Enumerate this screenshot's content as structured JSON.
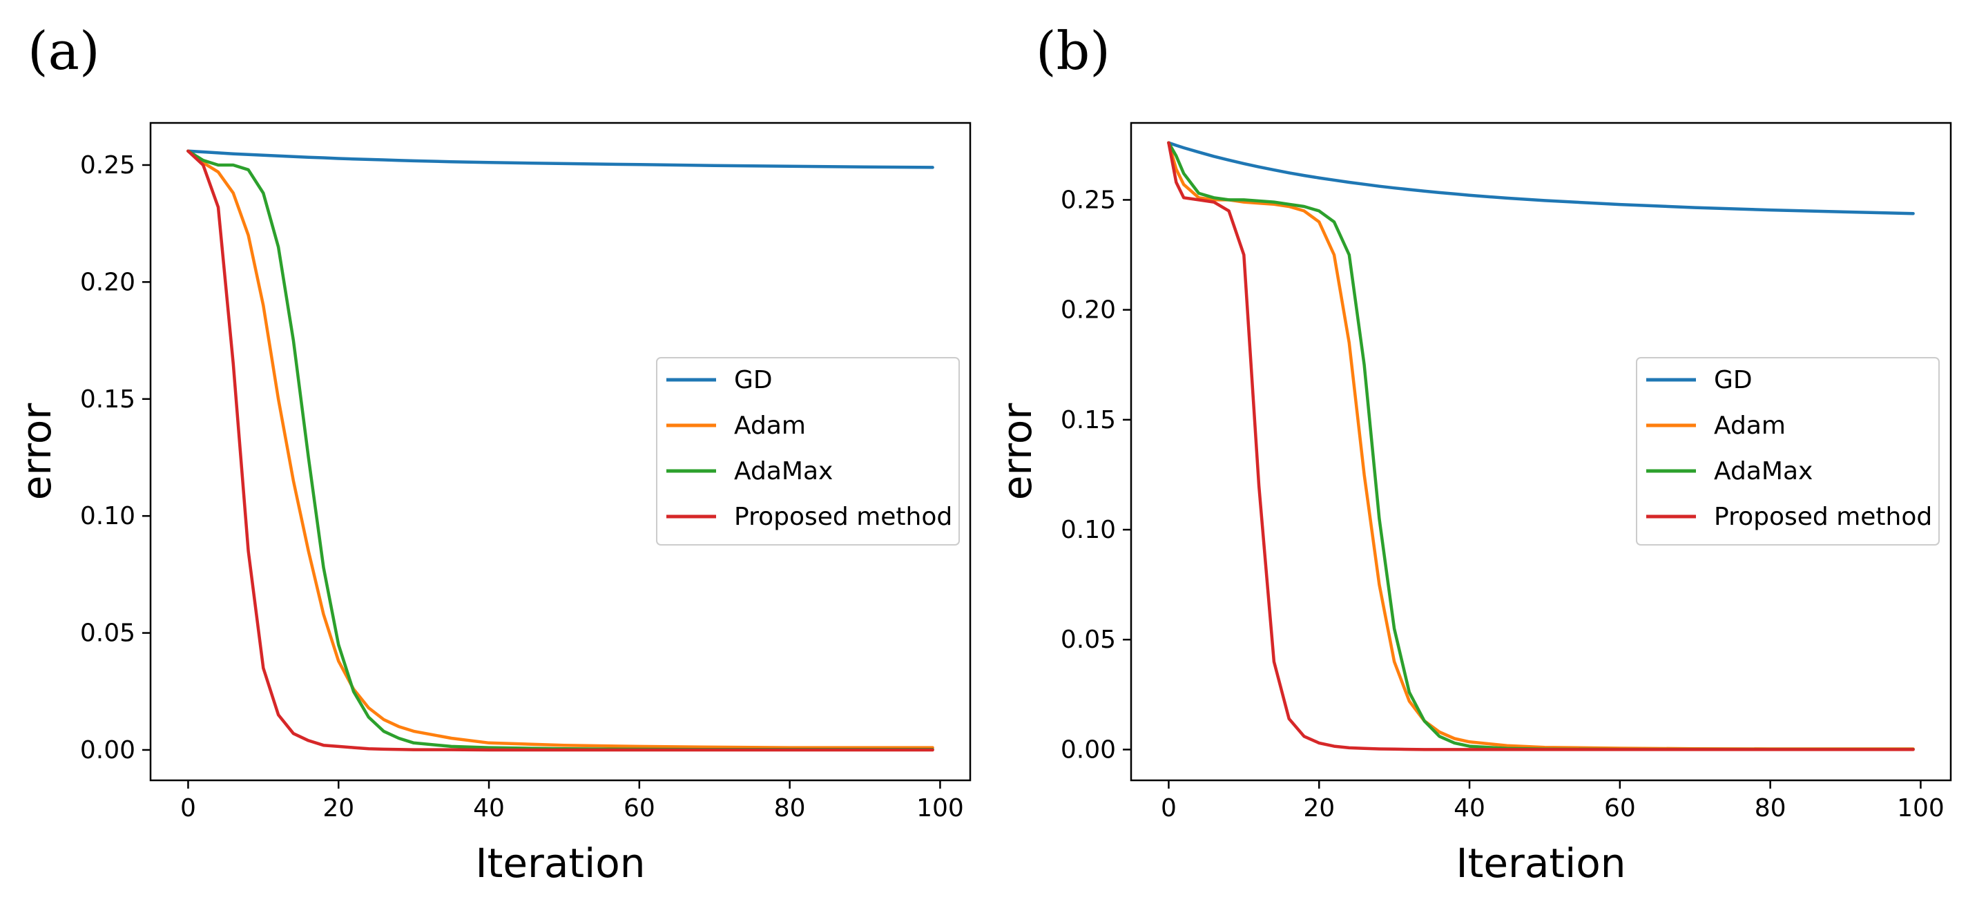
{
  "chart_data": [
    {
      "type": "line",
      "panel_label": "(a)",
      "xlabel": "Iteration",
      "ylabel": "error",
      "xlim": [
        -5,
        104
      ],
      "ylim": [
        -0.013,
        0.268
      ],
      "xticks": [
        0,
        20,
        40,
        60,
        80,
        100
      ],
      "xtick_labels": [
        "0",
        "20",
        "40",
        "60",
        "80",
        "100"
      ],
      "yticks": [
        0.0,
        0.05,
        0.1,
        0.15,
        0.2,
        0.25
      ],
      "ytick_labels": [
        "0.00",
        "0.05",
        "0.10",
        "0.15",
        "0.20",
        "0.25"
      ],
      "grid": false,
      "legend_position": "center-right",
      "x": [
        0,
        2,
        4,
        6,
        8,
        10,
        12,
        14,
        16,
        18,
        20,
        22,
        24,
        26,
        28,
        30,
        35,
        40,
        50,
        60,
        70,
        80,
        90,
        99
      ],
      "series": [
        {
          "name": "GD",
          "color": "#1f77b4",
          "values": [
            0.256,
            0.2556,
            0.2552,
            0.2548,
            0.2545,
            0.2542,
            0.2539,
            0.2536,
            0.2533,
            0.2531,
            0.2528,
            0.2526,
            0.2524,
            0.2522,
            0.252,
            0.2518,
            0.2514,
            0.2511,
            0.2506,
            0.2502,
            0.2498,
            0.2495,
            0.2492,
            0.249
          ]
        },
        {
          "name": "Adam",
          "color": "#ff7f0e",
          "values": [
            0.256,
            0.251,
            0.247,
            0.238,
            0.22,
            0.19,
            0.15,
            0.115,
            0.085,
            0.058,
            0.038,
            0.026,
            0.018,
            0.013,
            0.01,
            0.008,
            0.005,
            0.003,
            0.002,
            0.0015,
            0.0012,
            0.001,
            0.001,
            0.001
          ]
        },
        {
          "name": "AdaMax",
          "color": "#2ca02c",
          "values": [
            0.256,
            0.252,
            0.25,
            0.25,
            0.248,
            0.238,
            0.215,
            0.175,
            0.125,
            0.078,
            0.045,
            0.025,
            0.014,
            0.008,
            0.005,
            0.003,
            0.0015,
            0.001,
            0.0005,
            0.0003,
            0.0002,
            0.0002,
            0.0002,
            0.0002
          ]
        },
        {
          "name": "Proposed method",
          "color": "#d62728",
          "values": [
            0.256,
            0.25,
            0.232,
            0.165,
            0.085,
            0.035,
            0.015,
            0.007,
            0.004,
            0.002,
            0.0015,
            0.001,
            0.0005,
            0.0003,
            0.0002,
            0.0001,
            0.0001,
            0,
            0,
            0,
            0,
            0,
            0,
            0
          ]
        }
      ]
    },
    {
      "type": "line",
      "panel_label": "(b)",
      "xlabel": "Iteration",
      "ylabel": "error",
      "xlim": [
        -5,
        104
      ],
      "ylim": [
        -0.014,
        0.285
      ],
      "xticks": [
        0,
        20,
        40,
        60,
        80,
        100
      ],
      "xtick_labels": [
        "0",
        "20",
        "40",
        "60",
        "80",
        "100"
      ],
      "yticks": [
        0.0,
        0.05,
        0.1,
        0.15,
        0.2,
        0.25
      ],
      "ytick_labels": [
        "0.00",
        "0.05",
        "0.10",
        "0.15",
        "0.20",
        "0.25"
      ],
      "grid": false,
      "legend_position": "center-right",
      "x": [
        0,
        1,
        2,
        4,
        6,
        8,
        10,
        12,
        14,
        16,
        18,
        20,
        22,
        24,
        26,
        28,
        30,
        32,
        34,
        36,
        38,
        40,
        45,
        50,
        60,
        70,
        80,
        90,
        99
      ],
      "series": [
        {
          "name": "GD",
          "color": "#1f77b4",
          "values": [
            0.276,
            0.2748,
            0.2737,
            0.2717,
            0.2698,
            0.2681,
            0.2665,
            0.265,
            0.2636,
            0.2623,
            0.2611,
            0.26,
            0.259,
            0.258,
            0.2571,
            0.2562,
            0.2554,
            0.2547,
            0.254,
            0.2533,
            0.2527,
            0.2521,
            0.2508,
            0.2497,
            0.2479,
            0.2465,
            0.2454,
            0.2445,
            0.2438
          ]
        },
        {
          "name": "Adam",
          "color": "#ff7f0e",
          "values": [
            0.276,
            0.264,
            0.257,
            0.251,
            0.25,
            0.25,
            0.249,
            0.2485,
            0.248,
            0.247,
            0.245,
            0.24,
            0.225,
            0.185,
            0.125,
            0.075,
            0.04,
            0.022,
            0.013,
            0.008,
            0.005,
            0.0035,
            0.0018,
            0.001,
            0.0006,
            0.0004,
            0.0003,
            0.0003,
            0.0003
          ]
        },
        {
          "name": "AdaMax",
          "color": "#2ca02c",
          "values": [
            0.276,
            0.27,
            0.262,
            0.253,
            0.251,
            0.25,
            0.25,
            0.2495,
            0.249,
            0.248,
            0.247,
            0.245,
            0.24,
            0.225,
            0.175,
            0.105,
            0.055,
            0.026,
            0.013,
            0.006,
            0.003,
            0.0015,
            0.0005,
            0.0002,
            0.0001,
            0.0001,
            0.0001,
            0.0001,
            0.0001
          ]
        },
        {
          "name": "Proposed method",
          "color": "#d62728",
          "values": [
            0.276,
            0.258,
            0.251,
            0.25,
            0.249,
            0.245,
            0.225,
            0.12,
            0.04,
            0.014,
            0.006,
            0.003,
            0.0015,
            0.0008,
            0.0005,
            0.0003,
            0.0002,
            0.0001,
            0,
            0,
            0,
            0,
            0,
            0,
            0,
            0,
            0,
            0,
            0
          ]
        }
      ]
    }
  ]
}
